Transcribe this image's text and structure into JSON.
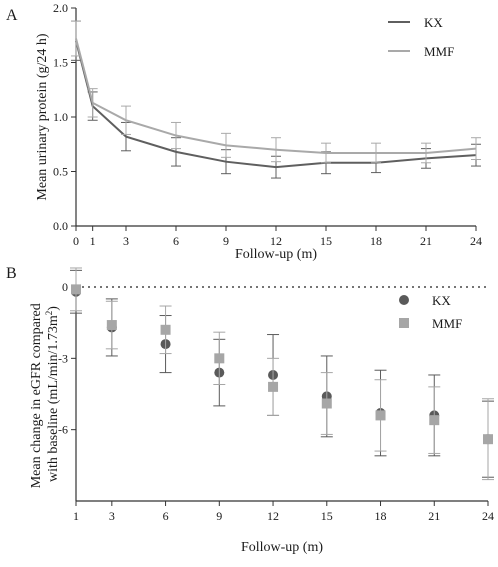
{
  "chart_data": [
    {
      "panel": "A",
      "type": "line",
      "title": "",
      "xlabel": "Follow-up (m)",
      "ylabel": "Mean urinary protein (g/24 h)",
      "x": [
        0,
        1,
        3,
        6,
        9,
        12,
        15,
        18,
        21,
        24
      ],
      "xticks": [
        "0",
        "1",
        "3",
        "6",
        "9",
        "12",
        "15",
        "18",
        "21",
        "24"
      ],
      "yticks": [
        "0.0",
        "0.5",
        "1.0",
        "1.5",
        "2.0"
      ],
      "xlim": [
        0,
        24
      ],
      "ylim": [
        0,
        2.0
      ],
      "grid": false,
      "legend_position": "top-right",
      "series": [
        {
          "name": "KX",
          "color": "#5f5f5f",
          "values": [
            1.7,
            1.1,
            0.82,
            0.68,
            0.59,
            0.54,
            0.58,
            0.58,
            0.62,
            0.65
          ],
          "error": [
            0.18,
            0.13,
            0.13,
            0.13,
            0.11,
            0.1,
            0.1,
            0.09,
            0.09,
            0.1
          ]
        },
        {
          "name": "MMF",
          "color": "#a9a9a9",
          "values": [
            1.72,
            1.13,
            0.97,
            0.83,
            0.74,
            0.7,
            0.67,
            0.67,
            0.67,
            0.71
          ],
          "error": [
            0.16,
            0.13,
            0.13,
            0.12,
            0.11,
            0.11,
            0.09,
            0.09,
            0.09,
            0.1
          ]
        }
      ]
    },
    {
      "panel": "B",
      "type": "scatter",
      "title": "",
      "xlabel": "Follow-up (m)",
      "ylabel_line1": "Mean change in eGFR compared",
      "ylabel_line2": "with baseline (mL/min/1.73m",
      "ylabel_sup": "2",
      "ylabel_end": ")",
      "x": [
        1,
        3,
        6,
        9,
        12,
        15,
        18,
        21,
        24
      ],
      "xticks": [
        "1",
        "3",
        "6",
        "9",
        "12",
        "15",
        "18",
        "21",
        "24"
      ],
      "yticks": [
        "0",
        "-3",
        "-6"
      ],
      "xlim": [
        1,
        24
      ],
      "ylim": [
        -9,
        0
      ],
      "reference_line": 0,
      "grid": false,
      "legend_position": "top-right",
      "series": [
        {
          "name": "KX",
          "marker": "circle",
          "color": "#5a5a5a",
          "values": [
            -0.2,
            -1.7,
            -2.4,
            -3.6,
            -3.7,
            -4.6,
            -5.3,
            -5.4,
            -6.4
          ],
          "error": [
            0.9,
            1.2,
            1.2,
            1.4,
            1.7,
            1.7,
            1.8,
            1.7,
            1.6
          ]
        },
        {
          "name": "MMF",
          "marker": "square",
          "color": "#a6a6a6",
          "values": [
            -0.1,
            -1.6,
            -1.8,
            -3.0,
            -4.2,
            -4.9,
            -5.4,
            -5.6,
            -6.4
          ],
          "error": [
            0.9,
            1.0,
            1.0,
            1.1,
            1.2,
            1.3,
            1.5,
            1.4,
            1.7
          ]
        }
      ]
    }
  ]
}
